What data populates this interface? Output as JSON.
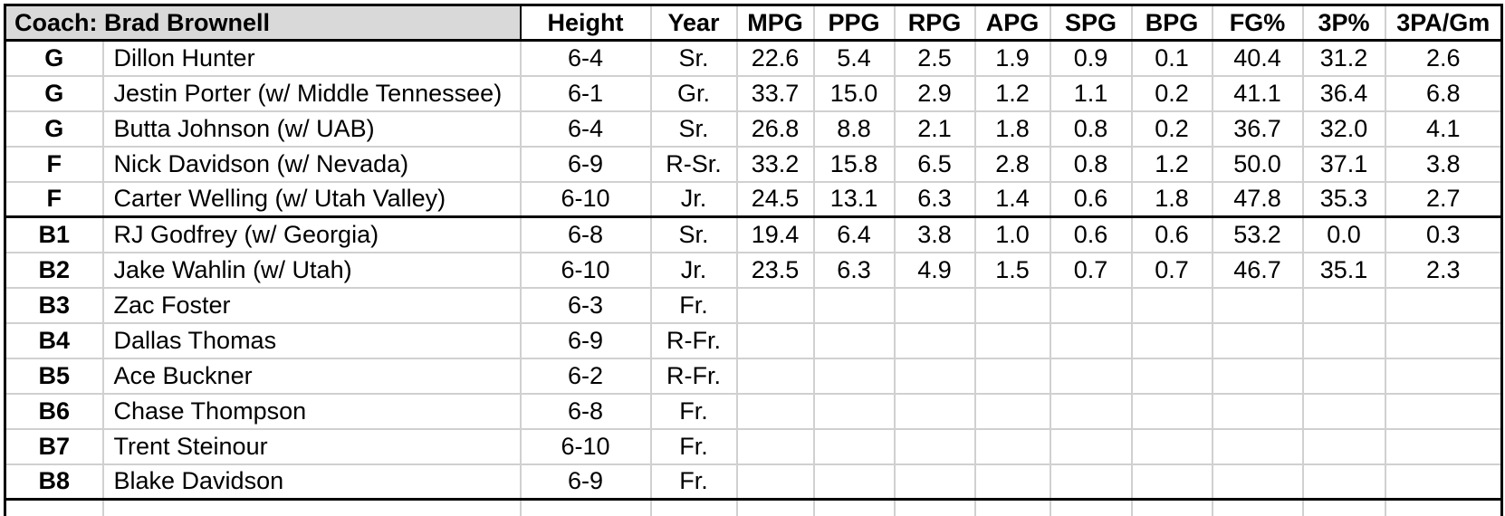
{
  "table": {
    "coach_label": "Coach: Brad Brownell",
    "columns": [
      "Height",
      "Year",
      "MPG",
      "PPG",
      "RPG",
      "APG",
      "SPG",
      "BPG",
      "FG%",
      "3P%",
      "3PA/Gm"
    ],
    "colors": {
      "header_fill": "#d9d9d9",
      "grid_line": "#d0d0d0",
      "border": "#000000"
    },
    "sections": [
      {
        "name": "starters",
        "rows": [
          {
            "pos": "G",
            "player": "Dillon Hunter",
            "height": "6-4",
            "year": "Sr.",
            "mpg": "22.6",
            "ppg": "5.4",
            "rpg": "2.5",
            "apg": "1.9",
            "spg": "0.9",
            "bpg": "0.1",
            "fg_pct": "40.4",
            "p3_pct": "31.2",
            "p3a_gm": "2.6"
          },
          {
            "pos": "G",
            "player": "Jestin Porter (w/ Middle Tennessee)",
            "height": "6-1",
            "year": "Gr.",
            "mpg": "33.7",
            "ppg": "15.0",
            "rpg": "2.9",
            "apg": "1.2",
            "spg": "1.1",
            "bpg": "0.2",
            "fg_pct": "41.1",
            "p3_pct": "36.4",
            "p3a_gm": "6.8"
          },
          {
            "pos": "G",
            "player": "Butta Johnson (w/ UAB)",
            "height": "6-4",
            "year": "Sr.",
            "mpg": "26.8",
            "ppg": "8.8",
            "rpg": "2.1",
            "apg": "1.8",
            "spg": "0.8",
            "bpg": "0.2",
            "fg_pct": "36.7",
            "p3_pct": "32.0",
            "p3a_gm": "4.1"
          },
          {
            "pos": "F",
            "player": "Nick Davidson (w/ Nevada)",
            "height": "6-9",
            "year": "R-Sr.",
            "mpg": "33.2",
            "ppg": "15.8",
            "rpg": "6.5",
            "apg": "2.8",
            "spg": "0.8",
            "bpg": "1.2",
            "fg_pct": "50.0",
            "p3_pct": "37.1",
            "p3a_gm": "3.8"
          },
          {
            "pos": "F",
            "player": "Carter Welling (w/ Utah Valley)",
            "height": "6-10",
            "year": "Jr.",
            "mpg": "24.5",
            "ppg": "13.1",
            "rpg": "6.3",
            "apg": "1.4",
            "spg": "0.6",
            "bpg": "1.8",
            "fg_pct": "47.8",
            "p3_pct": "35.3",
            "p3a_gm": "2.7"
          }
        ]
      },
      {
        "name": "bench",
        "rows": [
          {
            "pos": "B1",
            "player": "RJ Godfrey (w/ Georgia)",
            "height": "6-8",
            "year": "Sr.",
            "mpg": "19.4",
            "ppg": "6.4",
            "rpg": "3.8",
            "apg": "1.0",
            "spg": "0.6",
            "bpg": "0.6",
            "fg_pct": "53.2",
            "p3_pct": "0.0",
            "p3a_gm": "0.3"
          },
          {
            "pos": "B2",
            "player": "Jake Wahlin (w/ Utah)",
            "height": "6-10",
            "year": "Jr.",
            "mpg": "23.5",
            "ppg": "6.3",
            "rpg": "4.9",
            "apg": "1.5",
            "spg": "0.7",
            "bpg": "0.7",
            "fg_pct": "46.7",
            "p3_pct": "35.1",
            "p3a_gm": "2.3"
          },
          {
            "pos": "B3",
            "player": "Zac Foster",
            "height": "6-3",
            "year": "Fr.",
            "mpg": "",
            "ppg": "",
            "rpg": "",
            "apg": "",
            "spg": "",
            "bpg": "",
            "fg_pct": "",
            "p3_pct": "",
            "p3a_gm": ""
          },
          {
            "pos": "B4",
            "player": "Dallas Thomas",
            "height": "6-9",
            "year": "R-Fr.",
            "mpg": "",
            "ppg": "",
            "rpg": "",
            "apg": "",
            "spg": "",
            "bpg": "",
            "fg_pct": "",
            "p3_pct": "",
            "p3a_gm": ""
          },
          {
            "pos": "B5",
            "player": "Ace Buckner",
            "height": "6-2",
            "year": "R-Fr.",
            "mpg": "",
            "ppg": "",
            "rpg": "",
            "apg": "",
            "spg": "",
            "bpg": "",
            "fg_pct": "",
            "p3_pct": "",
            "p3a_gm": ""
          },
          {
            "pos": "B6",
            "player": "Chase Thompson",
            "height": "6-8",
            "year": "Fr.",
            "mpg": "",
            "ppg": "",
            "rpg": "",
            "apg": "",
            "spg": "",
            "bpg": "",
            "fg_pct": "",
            "p3_pct": "",
            "p3a_gm": ""
          },
          {
            "pos": "B7",
            "player": "Trent Steinour",
            "height": "6-10",
            "year": "Fr.",
            "mpg": "",
            "ppg": "",
            "rpg": "",
            "apg": "",
            "spg": "",
            "bpg": "",
            "fg_pct": "",
            "p3_pct": "",
            "p3a_gm": ""
          },
          {
            "pos": "B8",
            "player": "Blake Davidson",
            "height": "6-9",
            "year": "Fr.",
            "mpg": "",
            "ppg": "",
            "rpg": "",
            "apg": "",
            "spg": "",
            "bpg": "",
            "fg_pct": "",
            "p3_pct": "",
            "p3a_gm": ""
          }
        ]
      }
    ]
  }
}
